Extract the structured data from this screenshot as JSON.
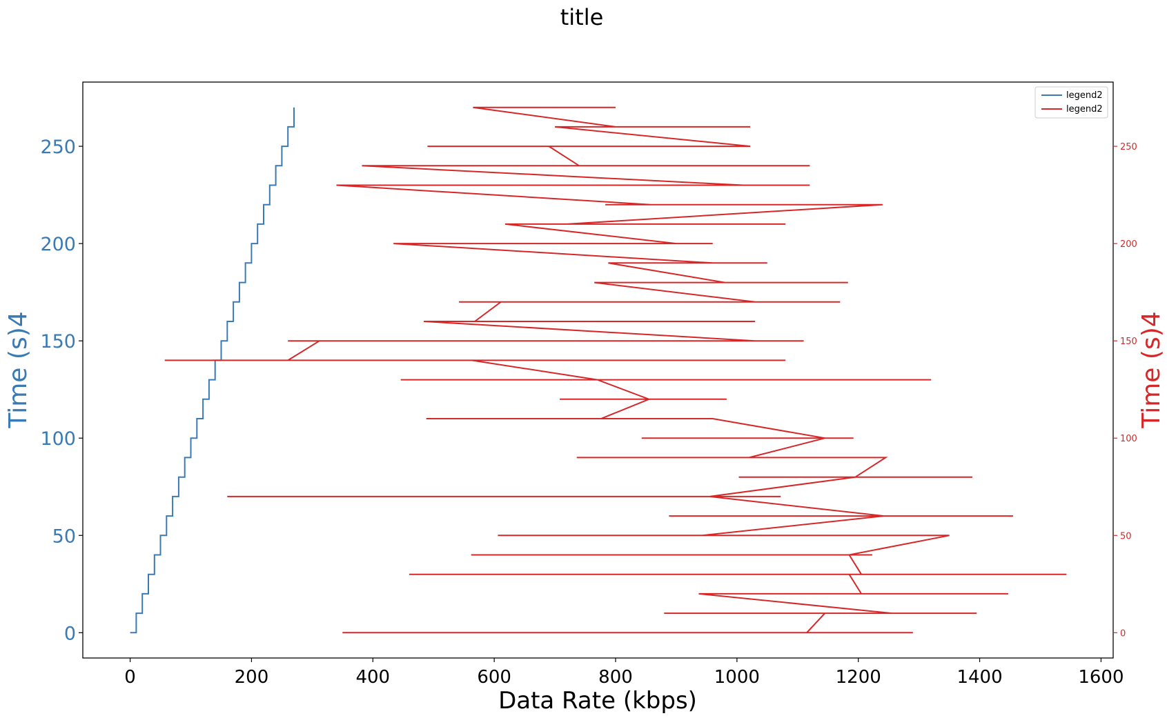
{
  "chart_data": {
    "type": "line",
    "title": "title",
    "xlabel": "Data Rate (kbps)",
    "ylabel_left": "Time (s)4",
    "ylabel_right": "Time (s)4",
    "xlim": [
      -78,
      1620
    ],
    "ylim": [
      -13,
      283
    ],
    "xticks": [
      "0",
      "200",
      "400",
      "600",
      "800",
      "1000",
      "1200",
      "1400",
      "1600"
    ],
    "xtick_values": [
      0,
      200,
      400,
      600,
      800,
      1000,
      1200,
      1400,
      1600
    ],
    "yticks_left": [
      "0",
      "50",
      "100",
      "150",
      "200",
      "250"
    ],
    "yticks_right": [
      "0",
      "50",
      "100",
      "150",
      "200",
      "250"
    ],
    "ytick_values": [
      0,
      50,
      100,
      150,
      200,
      250
    ],
    "grid": false,
    "legend_placement": "top-right",
    "colors": {
      "series1": "#3a7ab4",
      "series2": "#d62728"
    },
    "series": [
      {
        "name": "legend2",
        "axis": "left",
        "color": "#3a7ab4",
        "x": [
          0,
          10,
          10,
          20,
          20,
          30,
          30,
          40,
          40,
          50,
          50,
          60,
          60,
          70,
          70,
          80,
          80,
          90,
          90,
          100,
          100,
          110,
          110,
          120,
          120,
          130,
          130,
          140,
          140,
          150,
          150,
          160,
          160,
          170,
          170,
          180,
          180,
          190,
          190,
          200,
          200,
          210,
          210,
          220,
          220,
          230,
          230,
          240,
          240,
          250,
          250,
          260,
          260,
          270,
          270
        ],
        "y": [
          0,
          0,
          10,
          10,
          20,
          20,
          30,
          30,
          40,
          40,
          50,
          50,
          60,
          60,
          70,
          70,
          80,
          80,
          90,
          90,
          100,
          100,
          110,
          110,
          120,
          120,
          130,
          130,
          140,
          140,
          150,
          150,
          160,
          160,
          170,
          170,
          180,
          180,
          190,
          190,
          200,
          200,
          210,
          210,
          220,
          220,
          230,
          230,
          240,
          240,
          250,
          250,
          260,
          260,
          270
        ]
      },
      {
        "name": "legend2",
        "axis": "right",
        "color": "#d62728",
        "x": [
          1115,
          350,
          1290,
          1115,
          1145,
          880,
          1395,
          1255,
          937,
          1447,
          1255,
          1205,
          1185,
          460,
          1543,
          1205,
          1185,
          562,
          1223,
          1185,
          1350,
          606,
          1350,
          943,
          1242,
          888,
          1455,
          1242,
          955,
          160,
          1072,
          955,
          1195,
          1003,
          1388,
          1195,
          1245,
          736,
          1245,
          1020,
          1145,
          843,
          1192,
          1145,
          960,
          488,
          960,
          776,
          855,
          708,
          983,
          855,
          770,
          446,
          1320,
          770,
          563,
          57,
          1080,
          563,
          260,
          312,
          1110,
          260,
          1030,
          484,
          986,
          1030,
          897,
          568,
          611,
          542,
          611,
          1170,
          1030,
          765,
          1183,
          1030,
          980,
          788,
          1050,
          980,
          960,
          434,
          958,
          960,
          900,
          618,
          1080,
          900,
          720,
          783,
          720,
          1240,
          1240,
          783,
          858,
          340,
          1120,
          858,
          1010,
          382,
          1120,
          1010,
          740,
          690,
          1022,
          740,
          750,
          490,
          750,
          1022,
          1022,
          700,
          848,
          1022,
          800,
          565,
          663,
          800
        ],
        "y": [
          0,
          0,
          0,
          0,
          10,
          10,
          10,
          10,
          20,
          20,
          20,
          20,
          30,
          30,
          30,
          30,
          40,
          40,
          40,
          40,
          50,
          50,
          50,
          50,
          60,
          60,
          60,
          60,
          70,
          70,
          70,
          70,
          80,
          80,
          80,
          80,
          90,
          90,
          90,
          90,
          100,
          100,
          100,
          100,
          110,
          110,
          110,
          110,
          120,
          120,
          120,
          120,
          130,
          130,
          130,
          130,
          140,
          140,
          140,
          140,
          140,
          150,
          150,
          150,
          150,
          160,
          160,
          160,
          160,
          160,
          170,
          170,
          170,
          170,
          170,
          180,
          180,
          180,
          180,
          190,
          190,
          190,
          190,
          200,
          200,
          200,
          200,
          210,
          210,
          210,
          210,
          210,
          210,
          220,
          220,
          220,
          220,
          230,
          230,
          230,
          230,
          240,
          240,
          240,
          240,
          250,
          250,
          250,
          250,
          250,
          250,
          250,
          250,
          260,
          260,
          260,
          260,
          270,
          270,
          270
        ]
      }
    ],
    "legend": [
      "legend2",
      "legend2"
    ]
  }
}
